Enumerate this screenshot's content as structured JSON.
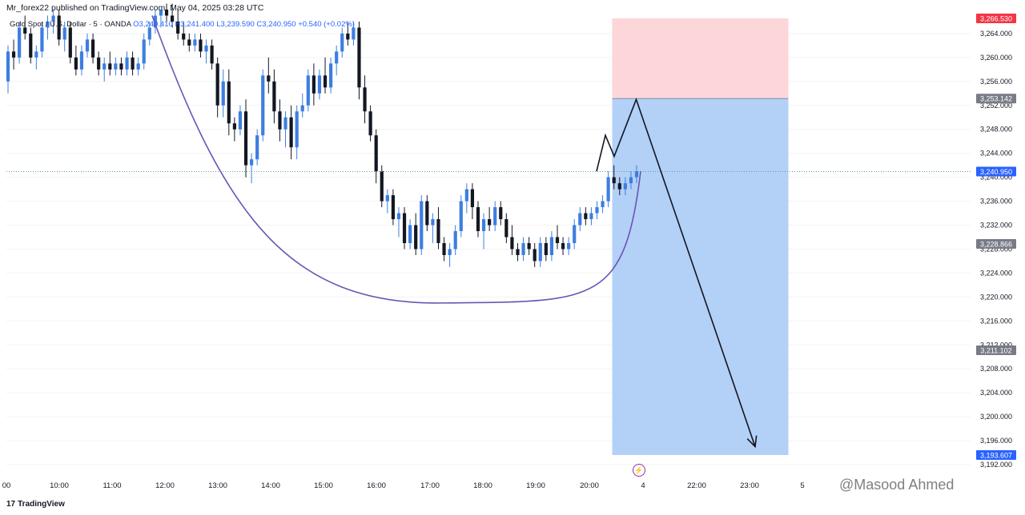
{
  "header": {
    "published": "Mr_forex22 published on TradingView.com, May 04, 2025 03:28 UTC",
    "symbol": "Gold Spot / U.S. Dollar · 5 · OANDA",
    "open": "O3,240.410",
    "high": "H3,241.400",
    "low": "L3,239.590",
    "close": "C3,240.950",
    "change": "+0.540 (+0.02%)"
  },
  "branding": {
    "logo": "17",
    "name": "TradingView"
  },
  "watermark": "@Masood Ahmed",
  "colors": {
    "bull": "#3d7ee0",
    "bear": "#131722",
    "stop_zone": "#fcd6d8",
    "target_zone": "#b3d0f7",
    "curve": "#6a55b5",
    "arrow": "#131722",
    "last_price_badge": "#2962ff",
    "tag_grey": "#787b86"
  },
  "icons": {
    "alert": "lightning-icon"
  },
  "chart_data": {
    "type": "candlestick",
    "timeframe": "5",
    "y_axis": {
      "min": 3190,
      "max": 3268,
      "ticks": [
        3192,
        3196,
        3200,
        3204,
        3208,
        3212,
        3216,
        3220,
        3224,
        3228,
        3232,
        3236,
        3240,
        3244,
        3248,
        3252,
        3256,
        3260,
        3264
      ]
    },
    "x_axis": {
      "labels": [
        "00",
        "10:00",
        "11:00",
        "12:00",
        "13:00",
        "14:00",
        "15:00",
        "16:00",
        "17:00",
        "18:00",
        "19:00",
        "20:00",
        "4",
        "22:00",
        "23:00",
        "5"
      ]
    },
    "price_tags": [
      {
        "value": "3,266.530",
        "kind": "stop"
      },
      {
        "value": "3,253.142",
        "kind": "entry"
      },
      {
        "value": "3,240.950",
        "kind": "last"
      },
      {
        "value": "3,228.866",
        "kind": "level"
      },
      {
        "value": "3,211.102",
        "kind": "level"
      },
      {
        "value": "3,193.607",
        "kind": "target"
      }
    ],
    "position": {
      "side": "short",
      "entry": 3253.142,
      "stop": 3266.53,
      "target": 3193.607,
      "from": "20:25",
      "to": "23:45"
    },
    "last_price": 3240.95,
    "rounding_bottom": {
      "start": 3267,
      "bottom": 3219,
      "end": 3241
    },
    "projection": [
      {
        "t": "20:10",
        "p": 3241
      },
      {
        "t": "20:20",
        "p": 3247
      },
      {
        "t": "20:30",
        "p": 3243.5
      },
      {
        "t": "20:55",
        "p": 3253
      },
      {
        "t": "23:10",
        "p": 3195
      }
    ],
    "candles": [
      [
        3256,
        3262,
        3254,
        3261
      ],
      [
        3261,
        3263,
        3258,
        3260
      ],
      [
        3260,
        3266,
        3259,
        3265
      ],
      [
        3265,
        3267,
        3263,
        3264
      ],
      [
        3264,
        3265,
        3259,
        3260
      ],
      [
        3260,
        3262,
        3258,
        3261
      ],
      [
        3261,
        3266,
        3260,
        3265
      ],
      [
        3265,
        3267,
        3263,
        3266
      ],
      [
        3266,
        3268,
        3264,
        3267
      ],
      [
        3267,
        3268,
        3262,
        3263
      ],
      [
        3263,
        3266,
        3261,
        3265
      ],
      [
        3265,
        3266,
        3259,
        3260
      ],
      [
        3260,
        3262,
        3257,
        3258
      ],
      [
        3258,
        3262,
        3257,
        3261
      ],
      [
        3261,
        3264,
        3260,
        3263
      ],
      [
        3263,
        3264,
        3259,
        3260
      ],
      [
        3260,
        3261,
        3257,
        3258
      ],
      [
        3258,
        3260,
        3256,
        3259
      ],
      [
        3259,
        3261,
        3257,
        3258
      ],
      [
        3258,
        3260,
        3257,
        3259
      ],
      [
        3259,
        3260,
        3257,
        3258
      ],
      [
        3258,
        3261,
        3257,
        3260
      ],
      [
        3260,
        3261,
        3257,
        3258
      ],
      [
        3258,
        3260,
        3257,
        3259
      ],
      [
        3259,
        3264,
        3258,
        3263
      ],
      [
        3263,
        3266,
        3262,
        3265
      ],
      [
        3265,
        3268,
        3264,
        3267
      ],
      [
        3267,
        3268,
        3265,
        3268
      ],
      [
        3268,
        3269,
        3266,
        3267
      ],
      [
        3267,
        3269,
        3265,
        3266
      ],
      [
        3266,
        3268,
        3263,
        3264
      ],
      [
        3264,
        3266,
        3262,
        3263
      ],
      [
        3263,
        3264,
        3261,
        3262
      ],
      [
        3262,
        3264,
        3261,
        3263
      ],
      [
        3263,
        3264,
        3260,
        3261
      ],
      [
        3261,
        3263,
        3259,
        3262
      ],
      [
        3262,
        3263,
        3258,
        3259
      ],
      [
        3259,
        3260,
        3250,
        3252
      ],
      [
        3252,
        3258,
        3250,
        3256
      ],
      [
        3256,
        3258,
        3247,
        3249
      ],
      [
        3249,
        3250,
        3246,
        3248
      ],
      [
        3248,
        3252,
        3247,
        3251
      ],
      [
        3251,
        3253,
        3240,
        3242
      ],
      [
        3242,
        3244,
        3239,
        3243
      ],
      [
        3243,
        3248,
        3242,
        3247
      ],
      [
        3247,
        3258,
        3246,
        3257
      ],
      [
        3257,
        3260,
        3254,
        3256
      ],
      [
        3256,
        3258,
        3249,
        3251
      ],
      [
        3251,
        3253,
        3246,
        3248
      ],
      [
        3248,
        3251,
        3245,
        3250
      ],
      [
        3250,
        3252,
        3243,
        3245
      ],
      [
        3245,
        3252,
        3243,
        3251
      ],
      [
        3251,
        3254,
        3250,
        3252
      ],
      [
        3252,
        3258,
        3251,
        3257
      ],
      [
        3257,
        3259,
        3252,
        3254
      ],
      [
        3254,
        3258,
        3253,
        3257
      ],
      [
        3257,
        3260,
        3254,
        3255
      ],
      [
        3255,
        3260,
        3254,
        3259
      ],
      [
        3259,
        3262,
        3257,
        3261
      ],
      [
        3261,
        3265,
        3260,
        3264
      ],
      [
        3264,
        3266,
        3262,
        3263
      ],
      [
        3263,
        3266,
        3262,
        3265
      ],
      [
        3265,
        3266,
        3253,
        3255
      ],
      [
        3255,
        3257,
        3249,
        3251
      ],
      [
        3251,
        3252,
        3246,
        3247
      ],
      [
        3247,
        3248,
        3239,
        3241
      ],
      [
        3241,
        3242,
        3235,
        3236
      ],
      [
        3236,
        3238,
        3234,
        3237
      ],
      [
        3237,
        3238,
        3232,
        3233
      ],
      [
        3233,
        3235,
        3230,
        3234
      ],
      [
        3234,
        3235,
        3228,
        3229
      ],
      [
        3229,
        3233,
        3228,
        3232
      ],
      [
        3232,
        3234,
        3227,
        3228
      ],
      [
        3228,
        3237,
        3227,
        3236
      ],
      [
        3236,
        3237,
        3231,
        3232
      ],
      [
        3232,
        3234,
        3229,
        3233
      ],
      [
        3233,
        3235,
        3228,
        3229
      ],
      [
        3229,
        3230,
        3226,
        3227
      ],
      [
        3227,
        3229,
        3225,
        3228
      ],
      [
        3228,
        3232,
        3227,
        3231
      ],
      [
        3231,
        3237,
        3230,
        3236
      ],
      [
        3236,
        3239,
        3234,
        3238
      ],
      [
        3238,
        3239,
        3233,
        3235
      ],
      [
        3235,
        3236,
        3230,
        3231
      ],
      [
        3231,
        3234,
        3228,
        3233
      ],
      [
        3233,
        3235,
        3231,
        3232
      ],
      [
        3232,
        3236,
        3231,
        3235
      ],
      [
        3235,
        3236,
        3232,
        3233
      ],
      [
        3233,
        3234,
        3229,
        3230
      ],
      [
        3230,
        3232,
        3227,
        3228
      ],
      [
        3228,
        3229,
        3226,
        3227
      ],
      [
        3227,
        3230,
        3226,
        3229
      ],
      [
        3229,
        3230,
        3227,
        3228
      ],
      [
        3228,
        3229,
        3225,
        3226
      ],
      [
        3226,
        3230,
        3225,
        3229
      ],
      [
        3229,
        3230,
        3226,
        3227
      ],
      [
        3227,
        3231,
        3226,
        3230
      ],
      [
        3230,
        3232,
        3228,
        3229
      ],
      [
        3229,
        3230,
        3227,
        3228
      ],
      [
        3228,
        3230,
        3227,
        3229
      ],
      [
        3229,
        3233,
        3228,
        3232
      ],
      [
        3232,
        3235,
        3231,
        3234
      ],
      [
        3234,
        3235,
        3232,
        3233
      ],
      [
        3233,
        3235,
        3232,
        3234
      ],
      [
        3234,
        3236,
        3233,
        3235
      ],
      [
        3235,
        3237,
        3234,
        3236
      ],
      [
        3236,
        3241,
        3235,
        3240
      ],
      [
        3240,
        3242,
        3238,
        3239
      ],
      [
        3239,
        3240,
        3237,
        3238
      ],
      [
        3238,
        3240,
        3237,
        3239
      ],
      [
        3239,
        3241,
        3238,
        3240
      ],
      [
        3240,
        3242,
        3239,
        3241
      ]
    ]
  }
}
